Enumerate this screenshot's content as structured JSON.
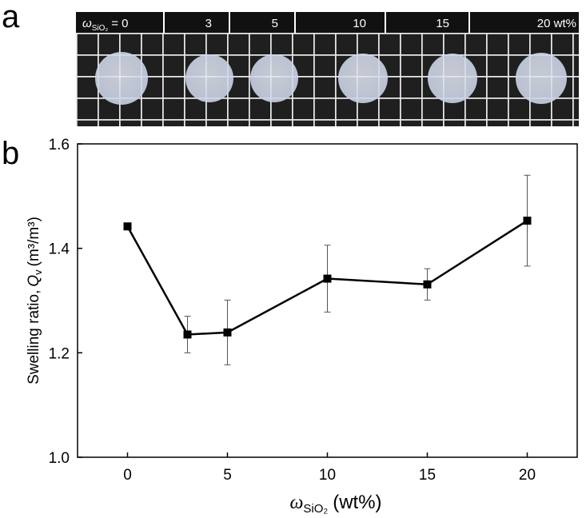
{
  "panel_a": {
    "label": "a",
    "header_symbol": "ω",
    "header_sub": "SiO₂",
    "header_rest": "= 0",
    "header_labels": [
      "3",
      "5",
      "10",
      "15",
      "20 wt%"
    ]
  },
  "panel_b_label": "b",
  "chart_data": {
    "type": "line",
    "x": [
      0,
      3,
      5,
      10,
      15,
      20
    ],
    "series": [
      {
        "name": "Swelling ratio",
        "color": "#000000",
        "values": [
          1.442,
          1.235,
          1.239,
          1.342,
          1.331,
          1.453
        ],
        "errors": [
          0.006,
          0.035,
          0.062,
          0.064,
          0.03,
          0.087
        ]
      }
    ],
    "xlim": [
      -2.5,
      22.5
    ],
    "xticks": [
      0,
      5,
      10,
      15,
      20
    ],
    "ylim": [
      1.0,
      1.6
    ],
    "yticks": [
      {
        "value": 1.0,
        "label": "1.0"
      },
      1.2,
      1.4,
      1.6
    ],
    "x_label": {
      "symbol": "ω",
      "sub": "SiO₂",
      "unit": "(wt%)"
    },
    "y_label": {
      "text": "Swelling ratio,",
      "symbol": "Q",
      "sub": "v",
      "unit": "(m³/m³)"
    }
  }
}
